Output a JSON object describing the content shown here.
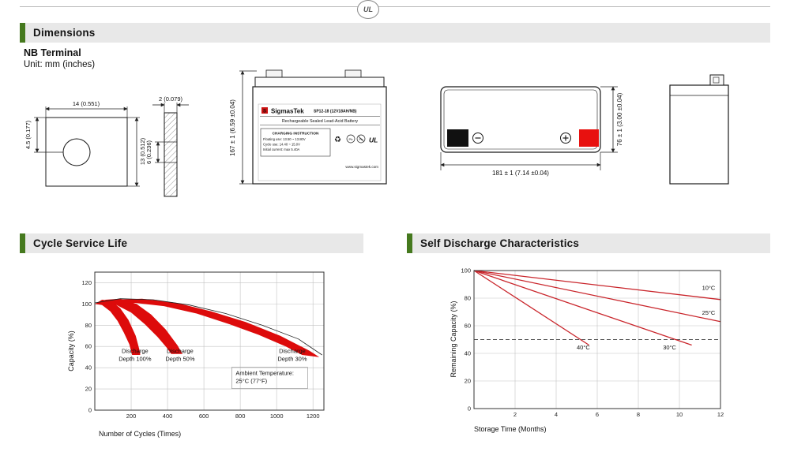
{
  "colors": {
    "accent": "#45791e",
    "header_bg": "#e8e8e8",
    "band_red": "#dd0b0b",
    "line_red": "#c9252b",
    "terminal_red": "#e8110f",
    "logo_red": "#cc1111"
  },
  "misc": {
    "ul_mark": "UL",
    "recycle": "♻"
  },
  "headers": {
    "dimensions": "Dimensions",
    "cycle": "Cycle Service Life",
    "self_discharge": "Self Discharge Characteristics"
  },
  "dimensions_section": {
    "terminal_title": "NB Terminal",
    "unit_note": "Unit: mm (inches)",
    "terminal_front": {
      "width": "14 (0.551)",
      "offset": "4.5 (0.177)",
      "height": "13 (0.512)"
    },
    "terminal_side": {
      "thickness": "2 (0.079)",
      "hole": "6 (0.236)"
    },
    "battery_front": {
      "height": "167 ± 1 (6.59 ±0.04)",
      "label": {
        "logo_letter": "S",
        "brand": "SigmasTek",
        "model": "SP12-18 (12V18AH/NB)",
        "type": "Rechargeable Sealed Lead-Acid Battery",
        "charging_title": "CHARGING INSTRUCTION",
        "charging_line1": "Floating use: 13.50 ~ 13.80V",
        "charging_line2": "Cycle use: 14.40 ~ 15.0V",
        "charging_line3": "Initial current: max 5.40A",
        "pb1": "Pb",
        "pb2": "Pb",
        "website": "www.sigmastek.com"
      }
    },
    "battery_top": {
      "width": "181 ± 1 (7.14 ±0.04)",
      "depth": "76 ± 1 (3.00 ±0.04)"
    }
  },
  "chart_data": [
    {
      "id": "cycle_life",
      "type": "area",
      "title": "Cycle Service Life",
      "xlabel": "Number of Cycles (Times)",
      "ylabel": "Capacity (%)",
      "xlim": [
        0,
        1260
      ],
      "ylim": [
        0,
        130
      ],
      "xticks": [
        200,
        400,
        600,
        800,
        1000,
        1200
      ],
      "yticks": [
        0,
        20,
        40,
        60,
        80,
        100,
        120
      ],
      "grid": true,
      "bands": [
        {
          "name": "Discharge Depth 100%",
          "points": [
            [
              0,
              100
            ],
            [
              40,
              104
            ],
            [
              90,
              103
            ],
            [
              140,
              96
            ],
            [
              185,
              85
            ],
            [
              225,
              70
            ],
            [
              247,
              56
            ],
            [
              250,
              52
            ],
            [
              205,
              52
            ],
            [
              190,
              62
            ],
            [
              160,
              73
            ],
            [
              125,
              84
            ],
            [
              85,
              93
            ],
            [
              40,
              99
            ]
          ]
        },
        {
          "name": "Discharge Depth 50%",
          "points": [
            [
              0,
              100
            ],
            [
              60,
              104
            ],
            [
              140,
              105
            ],
            [
              230,
              100
            ],
            [
              310,
              90
            ],
            [
              390,
              76
            ],
            [
              455,
              61
            ],
            [
              482,
              53
            ],
            [
              420,
              53
            ],
            [
              395,
              59
            ],
            [
              345,
              69
            ],
            [
              275,
              81
            ],
            [
              200,
              92
            ],
            [
              120,
              99
            ],
            [
              55,
              101
            ]
          ]
        },
        {
          "name": "Discharge Depth 30%",
          "points": [
            [
              0,
              100
            ],
            [
              100,
              104
            ],
            [
              260,
              105
            ],
            [
              450,
              101
            ],
            [
              640,
              93
            ],
            [
              830,
              83
            ],
            [
              1020,
              70
            ],
            [
              1180,
              56
            ],
            [
              1235,
              50
            ],
            [
              1140,
              52
            ],
            [
              1050,
              60
            ],
            [
              900,
              71
            ],
            [
              740,
              81
            ],
            [
              560,
              91
            ],
            [
              380,
              98
            ],
            [
              220,
              101
            ],
            [
              90,
              100
            ]
          ]
        }
      ],
      "outline": [
        [
          0,
          101
        ],
        [
          140,
          105
        ],
        [
          320,
          104
        ],
        [
          520,
          99
        ],
        [
          720,
          91
        ],
        [
          920,
          80
        ],
        [
          1120,
          67
        ],
        [
          1250,
          52
        ]
      ],
      "annotations": [
        {
          "lines": [
            "Discharge",
            "Depth 100%"
          ],
          "x": 221,
          "y": 54,
          "anchor": "middle",
          "box": false
        },
        {
          "lines": [
            "Discharge",
            "Depth 50%"
          ],
          "x": 469,
          "y": 54,
          "anchor": "middle",
          "box": false
        },
        {
          "lines": [
            "Discharge",
            "Depth 30%"
          ],
          "x": 1086,
          "y": 54,
          "anchor": "middle",
          "box": false
        },
        {
          "lines": [
            "Ambient Temperature:",
            "25°C (77°F)"
          ],
          "x": 775,
          "y": 33,
          "anchor": "start",
          "box": true
        }
      ]
    },
    {
      "id": "self_discharge",
      "type": "line",
      "title": "Self Discharge Characteristics",
      "xlabel": "Storage Time (Months)",
      "ylabel": "Remaining Capacity (%)",
      "xlim": [
        0,
        12
      ],
      "ylim": [
        0,
        100
      ],
      "xticks": [
        2,
        4,
        6,
        8,
        10,
        12
      ],
      "yticks": [
        0,
        20,
        40,
        60,
        80,
        100
      ],
      "grid": true,
      "dashed_line_y": 50,
      "series": [
        {
          "name": "10°C",
          "points": [
            [
              0,
              100
            ],
            [
              12,
              79
            ]
          ]
        },
        {
          "name": "25°C",
          "points": [
            [
              0,
              100
            ],
            [
              12,
              63
            ]
          ]
        },
        {
          "name": "30°C",
          "points": [
            [
              0,
              100
            ],
            [
              10.6,
              46
            ]
          ]
        },
        {
          "name": "40°C",
          "points": [
            [
              0,
              100
            ],
            [
              5.6,
              46
            ]
          ]
        }
      ],
      "labels": [
        {
          "text": "10°C",
          "x": 11.1,
          "y": 86
        },
        {
          "text": "25°C",
          "x": 11.1,
          "y": 68
        },
        {
          "text": "30°C",
          "x": 9.2,
          "y": 43
        },
        {
          "text": "40°C",
          "x": 5.0,
          "y": 43
        }
      ]
    }
  ]
}
